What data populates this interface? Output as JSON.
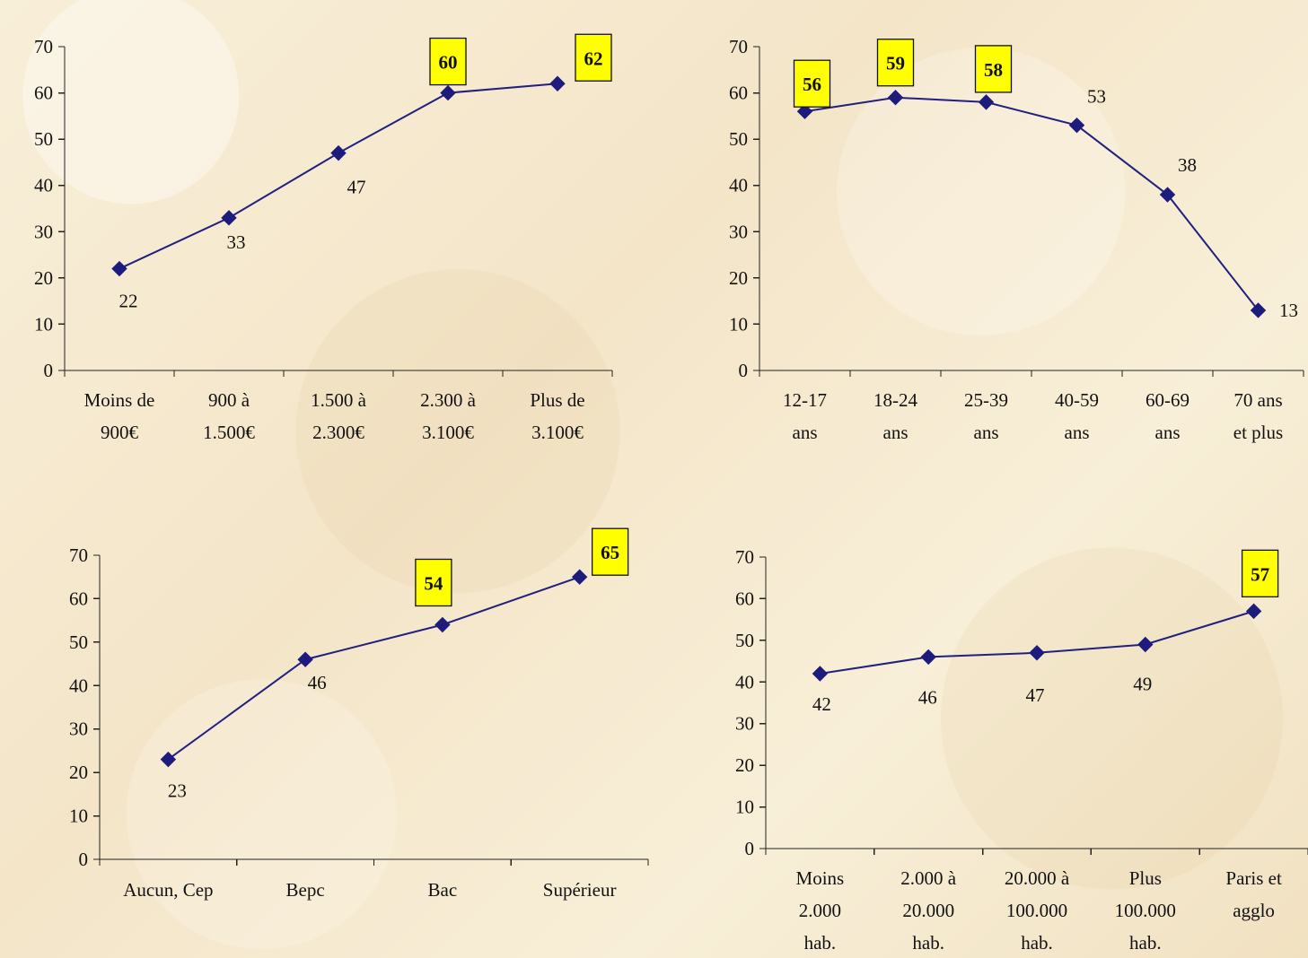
{
  "chart_data": [
    {
      "type": "line",
      "categories": [
        [
          "Moins de",
          "900€"
        ],
        [
          "900 à",
          "1.500€"
        ],
        [
          "1.500 à",
          "2.300€"
        ],
        [
          "2.300 à",
          "3.100€"
        ],
        [
          "Plus de",
          "3.100€"
        ]
      ],
      "values": [
        22,
        33,
        47,
        60,
        62
      ],
      "highlighted": [
        false,
        false,
        false,
        true,
        true
      ],
      "ylim": [
        0,
        70
      ],
      "yticks": [
        0,
        10,
        20,
        30,
        40,
        50,
        60,
        70
      ],
      "marker": "diamond",
      "line_color": "#202080",
      "highlight_color": "#ffff00",
      "title": "",
      "xlabel": "",
      "ylabel": ""
    },
    {
      "type": "line",
      "categories": [
        [
          "12-17",
          "ans"
        ],
        [
          "18-24",
          "ans"
        ],
        [
          "25-39",
          "ans"
        ],
        [
          "40-59",
          "ans"
        ],
        [
          "60-69",
          "ans"
        ],
        [
          "70 ans",
          "et plus"
        ]
      ],
      "values": [
        56,
        59,
        58,
        53,
        38,
        13
      ],
      "highlighted": [
        true,
        true,
        true,
        false,
        false,
        false
      ],
      "ylim": [
        0,
        70
      ],
      "yticks": [
        0,
        10,
        20,
        30,
        40,
        50,
        60,
        70
      ],
      "marker": "diamond",
      "line_color": "#202080",
      "highlight_color": "#ffff00",
      "title": "",
      "xlabel": "",
      "ylabel": ""
    },
    {
      "type": "line",
      "categories": [
        [
          "Aucun, Cep"
        ],
        [
          "Bepc"
        ],
        [
          "Bac"
        ],
        [
          "Supérieur"
        ]
      ],
      "values": [
        23,
        46,
        54,
        65
      ],
      "highlighted": [
        false,
        false,
        true,
        true
      ],
      "ylim": [
        0,
        70
      ],
      "yticks": [
        0,
        10,
        20,
        30,
        40,
        50,
        60,
        70
      ],
      "marker": "diamond",
      "line_color": "#202080",
      "highlight_color": "#ffff00",
      "title": "",
      "xlabel": "",
      "ylabel": ""
    },
    {
      "type": "line",
      "categories": [
        [
          "Moins",
          "2.000",
          "hab."
        ],
        [
          "2.000 à",
          "20.000",
          "hab."
        ],
        [
          "20.000 à",
          "100.000",
          "hab."
        ],
        [
          "Plus",
          "100.000",
          "hab."
        ],
        [
          "Paris et",
          "agglo"
        ]
      ],
      "values": [
        42,
        46,
        47,
        49,
        57
      ],
      "highlighted": [
        false,
        false,
        false,
        false,
        true
      ],
      "ylim": [
        0,
        70
      ],
      "yticks": [
        0,
        10,
        20,
        30,
        40,
        50,
        60,
        70
      ],
      "marker": "diamond",
      "line_color": "#202080",
      "highlight_color": "#ffff00",
      "title": "",
      "xlabel": "",
      "ylabel": ""
    }
  ]
}
